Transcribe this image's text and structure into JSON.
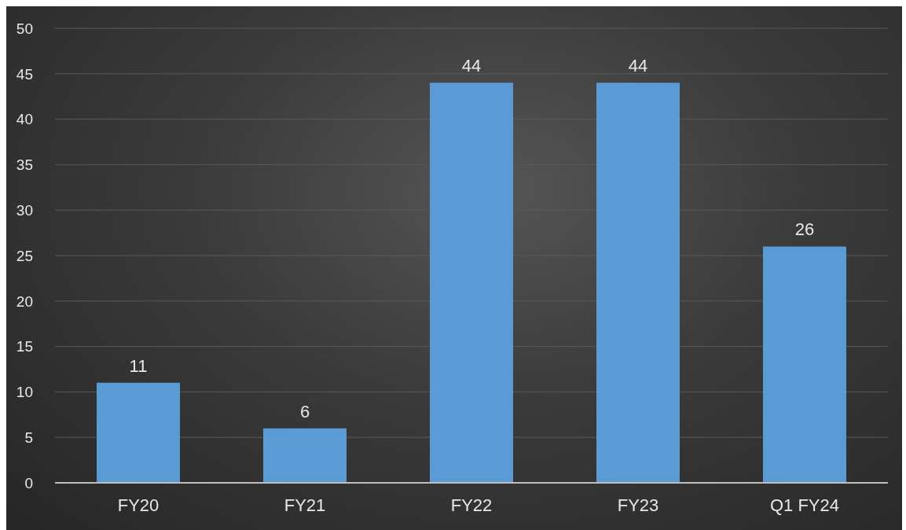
{
  "chart_data": {
    "type": "bar",
    "categories": [
      "FY20",
      "FY21",
      "FY22",
      "FY23",
      "Q1 FY24"
    ],
    "values": [
      11,
      6,
      44,
      44,
      26
    ],
    "color": "#5b9bd5",
    "ylim": [
      0,
      50
    ],
    "yticks": [
      0,
      5,
      10,
      15,
      20,
      25,
      30,
      35,
      40,
      45,
      50
    ],
    "grid": "y",
    "data_labels": true,
    "legend": false
  }
}
